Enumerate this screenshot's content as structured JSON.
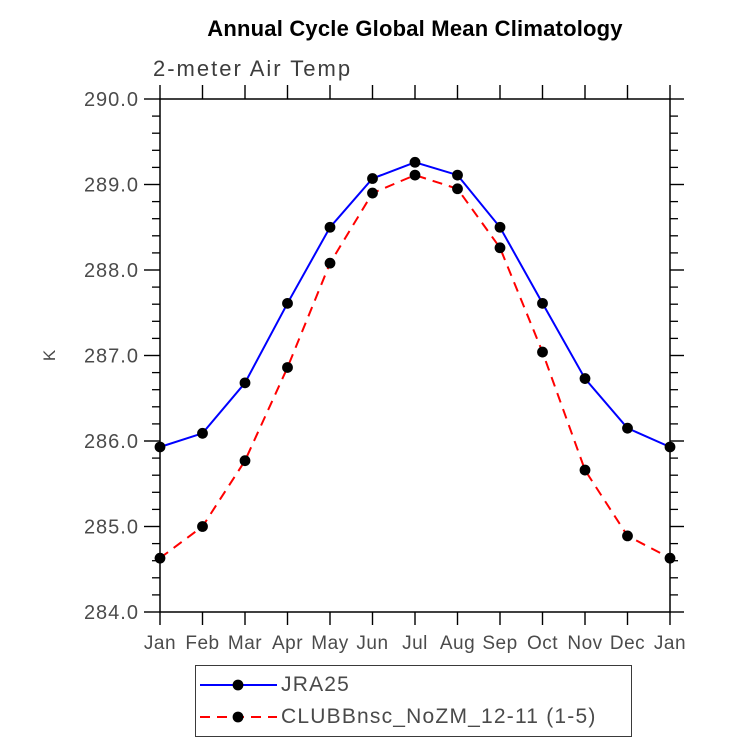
{
  "chart_data": {
    "type": "line",
    "title": "Annual Cycle Global Mean Climatology",
    "subtitle": "2-meter Air Temp",
    "ylabel": "K",
    "xlabel": "",
    "categories": [
      "Jan",
      "Feb",
      "Mar",
      "Apr",
      "May",
      "Jun",
      "Jul",
      "Aug",
      "Sep",
      "Oct",
      "Nov",
      "Dec",
      "Jan"
    ],
    "ylim": [
      284.0,
      290.0
    ],
    "y_major_step": 1.0,
    "y_minor_step": 0.2,
    "y_tick_decimals": 1,
    "grid": false,
    "legend_position": "bottom",
    "series": [
      {
        "name": "JRA25",
        "color": "#0000ff",
        "line_style": "solid",
        "marker": "filled-circle",
        "marker_color": "#000000",
        "values": [
          285.93,
          286.09,
          286.68,
          287.61,
          288.5,
          289.07,
          289.26,
          289.11,
          288.5,
          287.61,
          286.73,
          286.15,
          285.93
        ]
      },
      {
        "name": "CLUBBnsc_NoZM_12-11 (1-5)",
        "color": "#ff0000",
        "line_style": "dashed",
        "marker": "filled-circle",
        "marker_color": "#000000",
        "values": [
          284.63,
          285.0,
          285.77,
          286.86,
          288.08,
          288.9,
          289.11,
          288.95,
          288.26,
          287.04,
          285.66,
          284.89,
          284.63
        ]
      }
    ],
    "colors": {
      "axis": "#000000",
      "tick_label": "#4b4b4b",
      "title": "#000000"
    }
  }
}
